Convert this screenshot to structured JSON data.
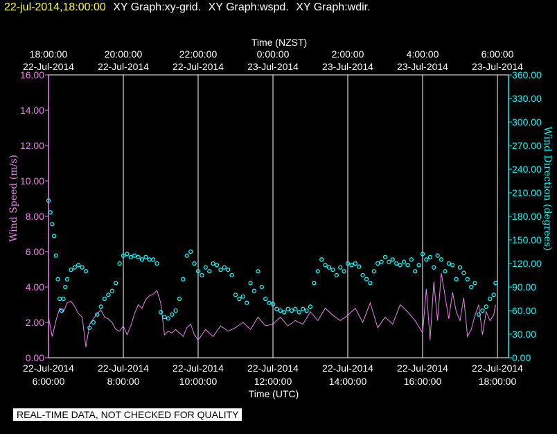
{
  "header": {
    "date": "22-jul-2014,18:00:00",
    "names": [
      "XY Graph:xy-grid.",
      "XY Graph:wspd.",
      "XY Graph:wdir."
    ]
  },
  "footer": {
    "note": "REAL-TIME DATA, NOT CHECKED FOR QUALITY"
  },
  "colors": {
    "speed": "#ee82ee",
    "direction": "#00ffff",
    "grid": "#ffffff",
    "background": "#000000"
  },
  "chart_data": {
    "type": "line",
    "top_axis_title": "Time (NZST)",
    "xlabel": "Time (UTC)",
    "ylabel_left": "Wind Speed (m/s)",
    "ylabel_right": "Wind Direction (degrees)",
    "xlim_hours": [
      6.0,
      18.0
    ],
    "x_tick_hours": [
      6,
      8,
      10,
      12,
      14,
      16,
      18
    ],
    "bottom_ticks": [
      {
        "date": "22-Jul-2014",
        "time": "6:00:00"
      },
      {
        "date": "22-Jul-2014",
        "time": "8:00:00"
      },
      {
        "date": "22-Jul-2014",
        "time": "10:00:00"
      },
      {
        "date": "22-Jul-2014",
        "time": "12:00:00"
      },
      {
        "date": "22-Jul-2014",
        "time": "14:00:00"
      },
      {
        "date": "22-Jul-2014",
        "time": "16:00:00"
      },
      {
        "date": "22-Jul-2014",
        "time": "18:00:00"
      }
    ],
    "top_ticks": [
      {
        "time": "18:00:00",
        "date": "22-Jul-2014"
      },
      {
        "time": "20:00:00",
        "date": "22-Jul-2014"
      },
      {
        "time": "22:00:00",
        "date": "22-Jul-2014"
      },
      {
        "time": "0:00:00",
        "date": "23-Jul-2014"
      },
      {
        "time": "2:00:00",
        "date": "23-Jul-2014"
      },
      {
        "time": "4:00:00",
        "date": "23-Jul-2014"
      },
      {
        "time": "6:00:00",
        "date": "23-Jul-2014"
      }
    ],
    "ylim_left": [
      0,
      16
    ],
    "left_ticks": [
      "0.00",
      "2.00",
      "4.00",
      "6.00",
      "8.00",
      "10.00",
      "12.00",
      "14.00",
      "16.00"
    ],
    "ylim_right": [
      0,
      360
    ],
    "right_ticks": [
      "0.00",
      "30.00",
      "60.00",
      "90.00",
      "120.00",
      "150.00",
      "180.00",
      "210.00",
      "240.00",
      "270.00",
      "300.00",
      "330.00",
      "360.00"
    ],
    "series": [
      {
        "name": "Wind Speed",
        "axis": "left",
        "style": "line",
        "x_hours": [
          6.0,
          6.1,
          6.2,
          6.3,
          6.4,
          6.5,
          6.6,
          6.7,
          6.8,
          6.9,
          7.0,
          7.1,
          7.2,
          7.3,
          7.4,
          7.5,
          7.6,
          7.7,
          7.8,
          7.9,
          8.0,
          8.1,
          8.2,
          8.3,
          8.4,
          8.5,
          8.6,
          8.7,
          8.8,
          8.9,
          9.0,
          9.1,
          9.2,
          9.3,
          9.4,
          9.5,
          9.6,
          9.7,
          9.8,
          9.9,
          10.0,
          10.2,
          10.4,
          10.6,
          10.8,
          11.0,
          11.2,
          11.4,
          11.6,
          11.8,
          12.0,
          12.2,
          12.4,
          12.6,
          12.8,
          13.0,
          13.2,
          13.4,
          13.6,
          13.8,
          14.0,
          14.2,
          14.4,
          14.6,
          14.8,
          15.0,
          15.2,
          15.4,
          15.6,
          15.8,
          16.0,
          16.1,
          16.2,
          16.3,
          16.4,
          16.5,
          16.6,
          16.7,
          16.8,
          16.9,
          17.0,
          17.1,
          17.2,
          17.3,
          17.4,
          17.5,
          17.6,
          17.7,
          17.8,
          17.9,
          17.95
        ],
        "values": [
          2.3,
          1.2,
          2.1,
          2.8,
          2.6,
          3.1,
          3.2,
          2.9,
          2.5,
          2.3,
          0.6,
          1.9,
          2.2,
          2.5,
          2.7,
          2.3,
          2.2,
          2.0,
          1.6,
          1.5,
          1.8,
          1.3,
          1.8,
          2.5,
          3.0,
          2.8,
          3.3,
          3.5,
          3.6,
          3.8,
          3.1,
          1.3,
          1.5,
          1.4,
          1.6,
          1.4,
          1.2,
          1.7,
          1.9,
          1.3,
          1.0,
          1.6,
          1.2,
          1.8,
          1.5,
          1.7,
          2.0,
          1.6,
          2.3,
          1.8,
          1.9,
          2.3,
          1.8,
          2.1,
          1.9,
          2.6,
          2.1,
          2.8,
          2.4,
          2.1,
          2.4,
          2.8,
          2.0,
          3.1,
          1.7,
          2.3,
          1.9,
          3.0,
          2.6,
          2.1,
          1.4,
          3.9,
          1.0,
          4.3,
          2.1,
          4.8,
          3.5,
          2.2,
          3.7,
          2.6,
          2.1,
          3.4,
          1.2,
          1.6,
          2.4,
          3.0,
          1.3,
          2.6,
          2.1,
          2.4,
          3.0
        ]
      },
      {
        "name": "Wind Direction",
        "axis": "right",
        "style": "markers",
        "x_hours": [
          6.0,
          6.05,
          6.1,
          6.15,
          6.2,
          6.25,
          6.3,
          6.35,
          6.4,
          6.45,
          6.5,
          6.6,
          6.7,
          6.8,
          6.9,
          7.0,
          7.1,
          7.2,
          7.3,
          7.4,
          7.5,
          7.6,
          7.7,
          7.8,
          7.9,
          8.0,
          8.1,
          8.2,
          8.3,
          8.4,
          8.5,
          8.6,
          8.7,
          8.8,
          8.9,
          9.0,
          9.1,
          9.2,
          9.3,
          9.4,
          9.5,
          9.6,
          9.7,
          9.8,
          9.9,
          10.0,
          10.1,
          10.2,
          10.3,
          10.4,
          10.5,
          10.6,
          10.7,
          10.8,
          10.9,
          11.0,
          11.1,
          11.2,
          11.3,
          11.4,
          11.5,
          11.6,
          11.7,
          11.8,
          11.9,
          12.0,
          12.1,
          12.2,
          12.3,
          12.4,
          12.5,
          12.6,
          12.7,
          12.8,
          12.9,
          13.0,
          13.1,
          13.2,
          13.3,
          13.4,
          13.5,
          13.6,
          13.7,
          13.8,
          13.9,
          14.0,
          14.1,
          14.2,
          14.3,
          14.4,
          14.5,
          14.6,
          14.7,
          14.8,
          14.9,
          15.0,
          15.1,
          15.2,
          15.3,
          15.4,
          15.5,
          15.6,
          15.7,
          15.8,
          15.9,
          16.0,
          16.1,
          16.2,
          16.3,
          16.4,
          16.5,
          16.6,
          16.7,
          16.8,
          16.9,
          17.0,
          17.1,
          17.2,
          17.3,
          17.4,
          17.5,
          17.6,
          17.7,
          17.8,
          17.9,
          17.95
        ],
        "values": [
          200,
          185,
          170,
          155,
          130,
          100,
          75,
          60,
          75,
          90,
          100,
          112,
          115,
          118,
          115,
          110,
          38,
          45,
          55,
          65,
          75,
          80,
          85,
          95,
          120,
          130,
          132,
          128,
          130,
          128,
          125,
          128,
          125,
          125,
          120,
          58,
          52,
          50,
          55,
          60,
          75,
          100,
          130,
          135,
          120,
          110,
          105,
          115,
          110,
          120,
          118,
          112,
          115,
          112,
          105,
          80,
          75,
          78,
          70,
          95,
          85,
          110,
          90,
          75,
          70,
          68,
          62,
          60,
          58,
          62,
          60,
          62,
          58,
          62,
          60,
          65,
          95,
          110,
          125,
          118,
          115,
          112,
          105,
          115,
          110,
          120,
          118,
          120,
          116,
          105,
          100,
          95,
          110,
          120,
          122,
          128,
          122,
          125,
          120,
          118,
          122,
          118,
          125,
          110,
          118,
          132,
          125,
          128,
          115,
          130,
          125,
          110,
          120,
          118,
          100,
          115,
          108,
          100,
          90,
          95,
          55,
          60,
          65,
          75,
          80,
          95
        ]
      }
    ]
  }
}
